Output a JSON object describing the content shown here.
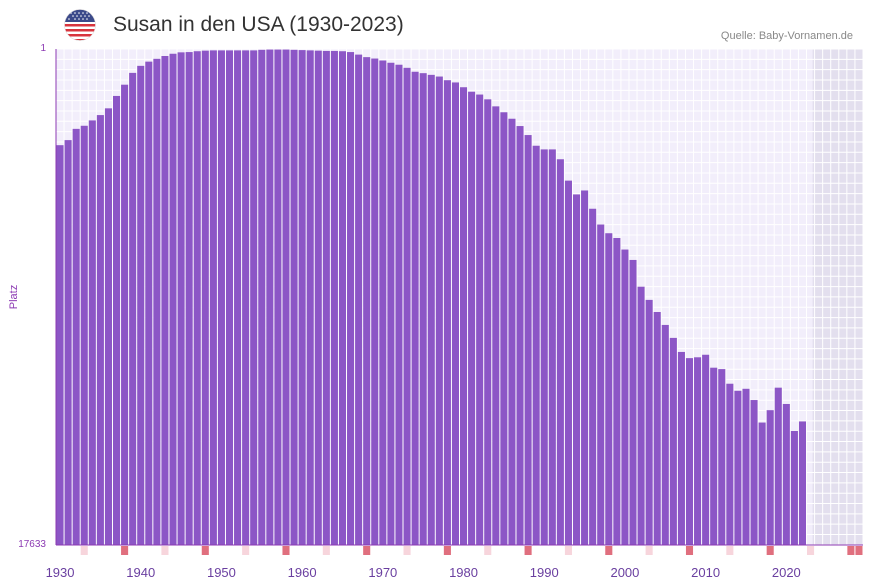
{
  "header": {
    "title": "Susan in den USA (1930-2023)",
    "source": "Quelle: Baby-Vornamen.de",
    "flag_icon": "us-flag-icon"
  },
  "colors": {
    "bar": "#8c56c6",
    "grid_bg": "#f2eefb",
    "shade": "#e3dfee",
    "axis": "#8c3ab3",
    "marker_strong": "#e06f7e",
    "marker_light": "#f7d5dc"
  },
  "chart_data": {
    "type": "bar",
    "title": "Susan in den USA (1930-2023)",
    "xlabel": "",
    "ylabel": "Platz",
    "y_axis": {
      "top_label": "1",
      "bottom_label": "17633",
      "inverted": true,
      "min": 1,
      "max": 17633
    },
    "x_tick_labels": [
      "1930",
      "1940",
      "1950",
      "1960",
      "1970",
      "1980",
      "1990",
      "2000",
      "2010",
      "2020"
    ],
    "years": [
      1930,
      1931,
      1932,
      1933,
      1934,
      1935,
      1936,
      1937,
      1938,
      1939,
      1940,
      1941,
      1942,
      1943,
      1944,
      1945,
      1946,
      1947,
      1948,
      1949,
      1950,
      1951,
      1952,
      1953,
      1954,
      1955,
      1956,
      1957,
      1958,
      1959,
      1960,
      1961,
      1962,
      1963,
      1964,
      1965,
      1966,
      1967,
      1968,
      1969,
      1970,
      1971,
      1972,
      1973,
      1974,
      1975,
      1976,
      1977,
      1978,
      1979,
      1980,
      1981,
      1982,
      1983,
      1984,
      1985,
      1986,
      1987,
      1988,
      1989,
      1990,
      1991,
      1992,
      1993,
      1994,
      1995,
      1996,
      1997,
      1998,
      1999,
      2000,
      2001,
      2002,
      2003,
      2004,
      2005,
      2006,
      2007,
      2008,
      2009,
      2010,
      2011,
      2012,
      2013,
      2014,
      2015,
      2016,
      2017,
      2018,
      2019,
      2020,
      2021,
      2022,
      2023
    ],
    "values": [
      3420,
      3240,
      2840,
      2730,
      2540,
      2350,
      2110,
      1670,
      1270,
      850,
      600,
      450,
      350,
      250,
      170,
      120,
      110,
      80,
      60,
      50,
      50,
      50,
      50,
      50,
      50,
      30,
      20,
      20,
      20,
      30,
      40,
      50,
      60,
      70,
      70,
      80,
      110,
      200,
      290,
      340,
      410,
      490,
      560,
      670,
      810,
      860,
      920,
      980,
      1110,
      1190,
      1360,
      1520,
      1620,
      1790,
      2040,
      2250,
      2480,
      2740,
      3060,
      3440,
      3570,
      3570,
      3920,
      4680,
      5170,
      5030,
      5680,
      6240,
      6550,
      6720,
      7130,
      7500,
      8450,
      8920,
      9350,
      9810,
      10270,
      10770,
      10990,
      10960,
      10870,
      11330,
      11380,
      11900,
      12150,
      12080,
      12480,
      13280,
      12840,
      12040,
      12620,
      13580,
      13240,
      17633
    ]
  }
}
